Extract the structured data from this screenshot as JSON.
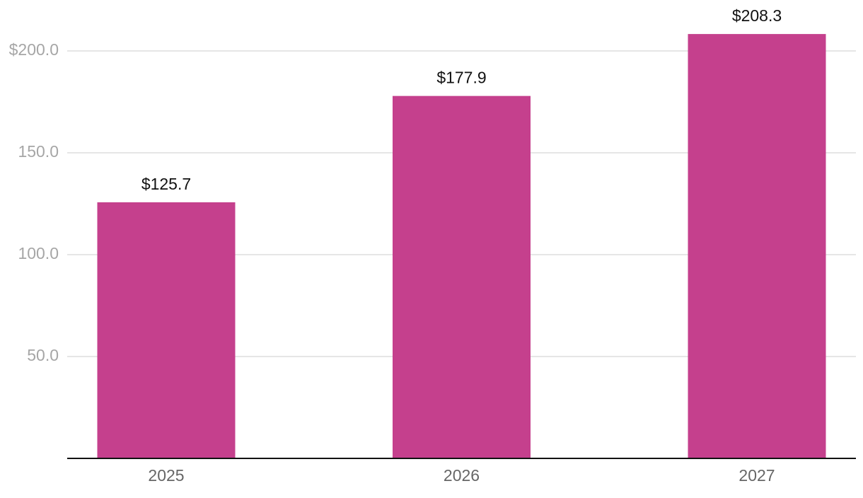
{
  "chart_data": {
    "type": "bar",
    "categories": [
      "2025",
      "2026",
      "2027"
    ],
    "values": [
      125.7,
      177.9,
      208.3
    ],
    "value_labels": [
      "$125.7",
      "$177.9",
      "$208.3"
    ],
    "color": "#c5408d",
    "ylim": [
      0,
      225
    ],
    "yticks": [
      {
        "value": 50,
        "label": "50.0"
      },
      {
        "value": 100,
        "label": "100.0"
      },
      {
        "value": 150,
        "label": "150.0"
      },
      {
        "value": 200,
        "label": "$200.0"
      }
    ],
    "grid": true
  }
}
